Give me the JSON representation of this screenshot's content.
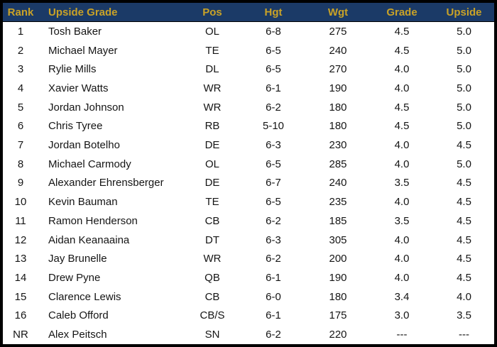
{
  "colors": {
    "header_background": "#1b3a67",
    "header_text": "#c9a227",
    "body_text": "#151515",
    "border": "#000000",
    "row_background": "#ffffff"
  },
  "chart_data": {
    "type": "table",
    "title": "Upside Grade rankings table",
    "columns": [
      "Rank",
      "Upside Grade",
      "Pos",
      "Hgt",
      "Wgt",
      "Grade",
      "Upside"
    ],
    "rows": [
      {
        "rank": "1",
        "name": "Tosh Baker",
        "pos": "OL",
        "hgt": "6-8",
        "wgt": "275",
        "grade": "4.5",
        "upside": "5.0"
      },
      {
        "rank": "2",
        "name": "Michael Mayer",
        "pos": "TE",
        "hgt": "6-5",
        "wgt": "240",
        "grade": "4.5",
        "upside": "5.0"
      },
      {
        "rank": "3",
        "name": "Rylie Mills",
        "pos": "DL",
        "hgt": "6-5",
        "wgt": "270",
        "grade": "4.0",
        "upside": "5.0"
      },
      {
        "rank": "4",
        "name": "Xavier Watts",
        "pos": "WR",
        "hgt": "6-1",
        "wgt": "190",
        "grade": "4.0",
        "upside": "5.0"
      },
      {
        "rank": "5",
        "name": "Jordan Johnson",
        "pos": "WR",
        "hgt": "6-2",
        "wgt": "180",
        "grade": "4.5",
        "upside": "5.0"
      },
      {
        "rank": "6",
        "name": "Chris Tyree",
        "pos": "RB",
        "hgt": "5-10",
        "wgt": "180",
        "grade": "4.5",
        "upside": "5.0"
      },
      {
        "rank": "7",
        "name": "Jordan Botelho",
        "pos": "DE",
        "hgt": "6-3",
        "wgt": "230",
        "grade": "4.0",
        "upside": "4.5"
      },
      {
        "rank": "8",
        "name": "Michael Carmody",
        "pos": "OL",
        "hgt": "6-5",
        "wgt": "285",
        "grade": "4.0",
        "upside": "5.0"
      },
      {
        "rank": "9",
        "name": "Alexander Ehrensberger",
        "pos": "DE",
        "hgt": "6-7",
        "wgt": "240",
        "grade": "3.5",
        "upside": "4.5"
      },
      {
        "rank": "10",
        "name": "Kevin Bauman",
        "pos": "TE",
        "hgt": "6-5",
        "wgt": "235",
        "grade": "4.0",
        "upside": "4.5"
      },
      {
        "rank": "11",
        "name": "Ramon Henderson",
        "pos": "CB",
        "hgt": "6-2",
        "wgt": "185",
        "grade": "3.5",
        "upside": "4.5"
      },
      {
        "rank": "12",
        "name": "Aidan Keanaaina",
        "pos": "DT",
        "hgt": "6-3",
        "wgt": "305",
        "grade": "4.0",
        "upside": "4.5"
      },
      {
        "rank": "13",
        "name": "Jay Brunelle",
        "pos": "WR",
        "hgt": "6-2",
        "wgt": "200",
        "grade": "4.0",
        "upside": "4.5"
      },
      {
        "rank": "14",
        "name": "Drew Pyne",
        "pos": "QB",
        "hgt": "6-1",
        "wgt": "190",
        "grade": "4.0",
        "upside": "4.5"
      },
      {
        "rank": "15",
        "name": "Clarence Lewis",
        "pos": "CB",
        "hgt": "6-0",
        "wgt": "180",
        "grade": "3.4",
        "upside": "4.0"
      },
      {
        "rank": "16",
        "name": "Caleb Offord",
        "pos": "CB/S",
        "hgt": "6-1",
        "wgt": "175",
        "grade": "3.0",
        "upside": "3.5"
      },
      {
        "rank": "NR",
        "name": "Alex Peitsch",
        "pos": "SN",
        "hgt": "6-2",
        "wgt": "220",
        "grade": "---",
        "upside": "---"
      }
    ]
  }
}
